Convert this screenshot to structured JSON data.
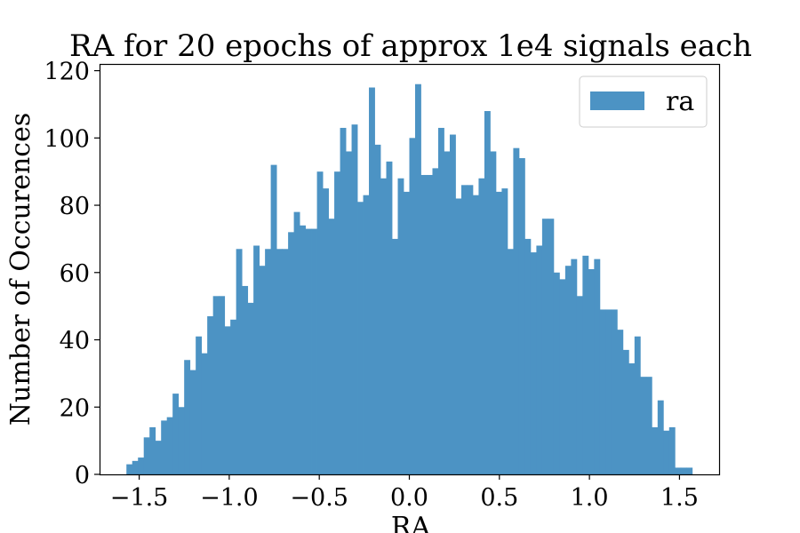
{
  "chart_data": {
    "type": "bar",
    "title": "RA for 20 epochs of approx 1e4 signals each",
    "xlabel": "RA",
    "ylabel": "Number of Occurences",
    "xlim": [
      -1.72,
      1.72
    ],
    "ylim": [
      0,
      122
    ],
    "x_ticks": [
      -1.5,
      -1.0,
      -0.5,
      0.0,
      0.5,
      1.0,
      1.5
    ],
    "x_tick_labels": [
      "−1.5",
      "−1.0",
      "−0.5",
      "0.0",
      "0.5",
      "1.0",
      "1.5"
    ],
    "y_ticks": [
      0,
      20,
      40,
      60,
      80,
      100,
      120
    ],
    "y_tick_labels": [
      "0",
      "20",
      "40",
      "60",
      "80",
      "100",
      "120"
    ],
    "grid": false,
    "legend_position": "top-right",
    "bin_range": [
      -1.5708,
      1.5708
    ],
    "series": [
      {
        "name": "ra",
        "color": "#4c93c4",
        "values": [
          3,
          4,
          5,
          11,
          14,
          10,
          16,
          17,
          24,
          20,
          34,
          31,
          41,
          36,
          47,
          53,
          53,
          44,
          46,
          67,
          56,
          51,
          68,
          62,
          67,
          92,
          67,
          67,
          72,
          78,
          74,
          73,
          73,
          90,
          85,
          76,
          90,
          103,
          96,
          104,
          81,
          83,
          115,
          98,
          88,
          93,
          70,
          88,
          84,
          100,
          116,
          89,
          89,
          91,
          103,
          96,
          101,
          82,
          86,
          86,
          83,
          88,
          108,
          96,
          84,
          85,
          67,
          97,
          94,
          70,
          66,
          68,
          76,
          76,
          60,
          58,
          62,
          64,
          53,
          65,
          61,
          64,
          49,
          49,
          49,
          43,
          37,
          33,
          41,
          29,
          29,
          14,
          22,
          13,
          14,
          2,
          2,
          2
        ]
      }
    ]
  }
}
